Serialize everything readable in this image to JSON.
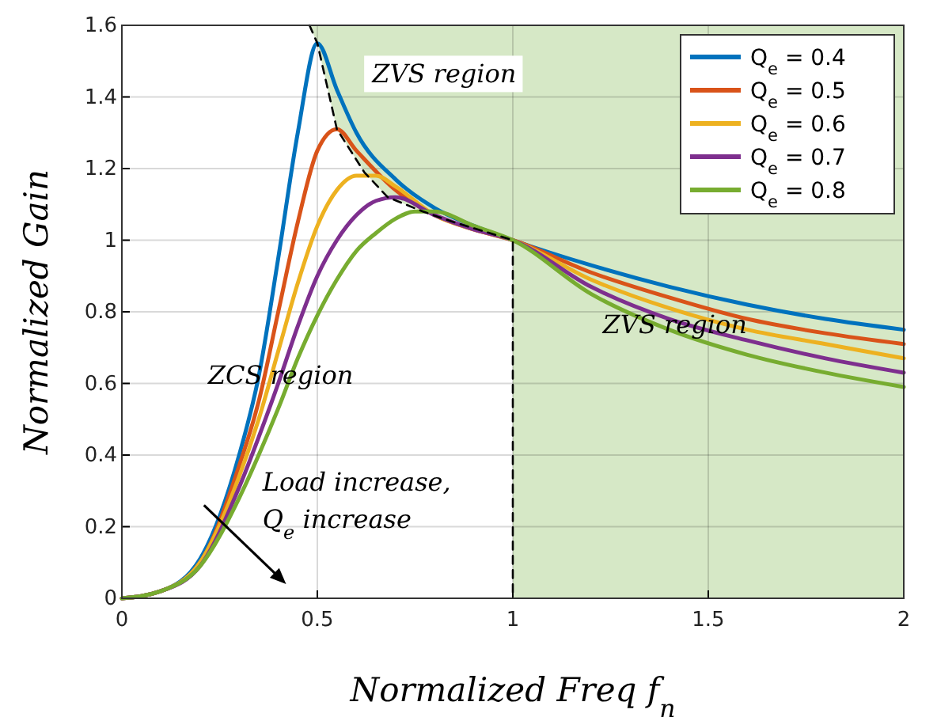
{
  "chart_data": {
    "type": "line",
    "xlabel": "Normalized Freq f$_{n}$",
    "ylabel": "Normalized Gain",
    "xlim": [
      0,
      2
    ],
    "ylim": [
      0,
      1.6
    ],
    "xticks": [
      0,
      0.5,
      1,
      1.5,
      2
    ],
    "yticks": [
      0,
      0.2,
      0.4,
      0.6,
      0.8,
      1,
      1.2,
      1.4,
      1.6
    ],
    "grid": true,
    "legend": "top right",
    "line_style": "solid",
    "marker": "none",
    "bands": [
      {
        "axis": "x",
        "from": 1,
        "to": 2,
        "color": "#d6e8c6"
      }
    ],
    "annotations": [
      "ZVS region",
      "ZVS region",
      "ZCS region",
      "Load increase,\nQ$_{e}$ increase"
    ],
    "series": [
      {
        "name": "Q$_{e}$ = 0.4",
        "color": "#0072bd",
        "x": [
          0,
          0.1,
          0.2,
          0.3,
          0.35,
          0.4,
          0.45,
          0.5,
          0.55,
          0.6,
          0.7,
          0.8,
          0.9,
          1,
          1.2,
          1.4,
          1.6,
          1.8,
          2
        ],
        "values": [
          0,
          0.02,
          0.11,
          0.4,
          0.62,
          0.95,
          1.3,
          1.55,
          1.42,
          1.3,
          1.17,
          1.09,
          1.04,
          1,
          0.93,
          0.87,
          0.82,
          0.78,
          0.75
        ]
      },
      {
        "name": "Q$_{e}$ = 0.5",
        "color": "#d95319",
        "x": [
          0,
          0.1,
          0.2,
          0.3,
          0.35,
          0.4,
          0.45,
          0.5,
          0.55,
          0.6,
          0.7,
          0.8,
          0.9,
          1,
          1.2,
          1.4,
          1.6,
          1.8,
          2
        ],
        "values": [
          0,
          0.02,
          0.1,
          0.37,
          0.55,
          0.8,
          1.05,
          1.25,
          1.31,
          1.25,
          1.14,
          1.07,
          1.03,
          1,
          0.91,
          0.84,
          0.78,
          0.74,
          0.71
        ]
      },
      {
        "name": "Q$_{e}$ = 0.6",
        "color": "#edb120",
        "x": [
          0,
          0.1,
          0.2,
          0.3,
          0.35,
          0.4,
          0.45,
          0.5,
          0.55,
          0.6,
          0.65,
          0.7,
          0.8,
          0.9,
          1,
          1.2,
          1.4,
          1.6,
          1.8,
          2
        ],
        "values": [
          0,
          0.02,
          0.1,
          0.34,
          0.5,
          0.69,
          0.88,
          1.04,
          1.14,
          1.18,
          1.18,
          1.15,
          1.07,
          1.03,
          1,
          0.89,
          0.81,
          0.75,
          0.71,
          0.67
        ]
      },
      {
        "name": "Q$_{e}$ = 0.7",
        "color": "#7e2f8e",
        "x": [
          0,
          0.1,
          0.2,
          0.3,
          0.35,
          0.4,
          0.45,
          0.5,
          0.55,
          0.6,
          0.65,
          0.7,
          0.8,
          0.9,
          1,
          1.2,
          1.4,
          1.6,
          1.8,
          2
        ],
        "values": [
          0,
          0.02,
          0.09,
          0.31,
          0.45,
          0.6,
          0.76,
          0.9,
          1.0,
          1.07,
          1.11,
          1.12,
          1.07,
          1.03,
          1,
          0.87,
          0.78,
          0.72,
          0.67,
          0.63
        ]
      },
      {
        "name": "Q$_{e}$ = 0.8",
        "color": "#77ac30",
        "x": [
          0,
          0.1,
          0.2,
          0.3,
          0.35,
          0.4,
          0.45,
          0.5,
          0.55,
          0.6,
          0.65,
          0.7,
          0.75,
          0.8,
          0.9,
          1,
          1.2,
          1.4,
          1.6,
          1.8,
          2
        ],
        "values": [
          0,
          0.02,
          0.09,
          0.28,
          0.4,
          0.53,
          0.67,
          0.79,
          0.89,
          0.97,
          1.02,
          1.06,
          1.08,
          1.08,
          1.04,
          1,
          0.85,
          0.75,
          0.68,
          0.63,
          0.59
        ]
      },
      {
        "color": "#000000",
        "line_style": "dashed",
        "x": [
          0.48,
          0.5,
          0.55,
          0.62,
          0.68,
          0.77,
          0.85,
          1,
          1
        ],
        "values": [
          1.6,
          1.55,
          1.31,
          1.19,
          1.12,
          1.08,
          1.05,
          1,
          0
        ],
        "lower": [
          1.6,
          1.55,
          1.31,
          1.19,
          1.12,
          1.08,
          1.05,
          1,
          1
        ],
        "upper": [
          1.6,
          1.6,
          1.6,
          1.6,
          1.6,
          1.6,
          1.6,
          1.6,
          1.6
        ]
      }
    ]
  }
}
